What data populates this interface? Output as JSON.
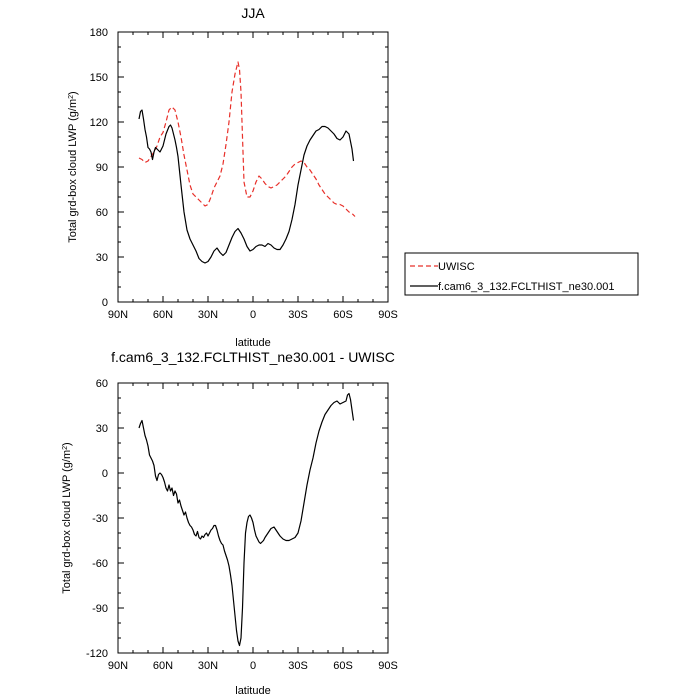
{
  "chart_data": [
    {
      "type": "line",
      "title": "JJA",
      "xlabel": "latitude",
      "ylabel": "Total grd-box cloud LWP (g/m",
      "ylabel_sup": "2",
      "ylabel_end": ")",
      "xlim": [
        90,
        -90
      ],
      "ylim": [
        0,
        180
      ],
      "xticks": [
        90,
        60,
        30,
        0,
        -30,
        -60,
        -90
      ],
      "xtick_labels": [
        "90N",
        "60N",
        "30N",
        "0",
        "30S",
        "60S",
        "90S"
      ],
      "yticks": [
        0,
        30,
        60,
        90,
        120,
        150,
        180
      ],
      "ytick_labels": [
        "0",
        "30",
        "60",
        "90",
        "120",
        "150",
        "180"
      ],
      "legend": "right",
      "series": [
        {
          "name": "UWISC",
          "color": "#e8302a",
          "dash": "dashed",
          "x": [
            76,
            74,
            72,
            70,
            68,
            66,
            64,
            62,
            60,
            58,
            56,
            54,
            52,
            50,
            48,
            46,
            44,
            42,
            40,
            38,
            36,
            34,
            32,
            30,
            28,
            26,
            24,
            22,
            20,
            18,
            16,
            14,
            12,
            10,
            9,
            8,
            7,
            6,
            4,
            2,
            0,
            -2,
            -4,
            -6,
            -8,
            -10,
            -12,
            -14,
            -16,
            -18,
            -20,
            -22,
            -24,
            -26,
            -28,
            -30,
            -32,
            -34,
            -36,
            -38,
            -40,
            -42,
            -44,
            -46,
            -48,
            -50,
            -52,
            -54,
            -56,
            -58,
            -60,
            -62,
            -64,
            -66,
            -68
          ],
          "y": [
            96,
            95,
            93,
            94,
            97,
            100,
            104,
            110,
            113,
            120,
            128,
            130,
            128,
            120,
            110,
            98,
            88,
            78,
            72,
            70,
            68,
            66,
            64,
            65,
            70,
            76,
            80,
            84,
            92,
            105,
            120,
            140,
            152,
            160,
            155,
            140,
            110,
            80,
            70,
            70,
            74,
            80,
            84,
            82,
            79,
            77,
            76,
            77,
            78,
            80,
            82,
            84,
            87,
            90,
            92,
            93,
            94,
            93,
            90,
            88,
            85,
            82,
            78,
            75,
            72,
            70,
            68,
            66,
            65,
            65,
            64,
            62,
            60,
            59,
            57
          ]
        },
        {
          "name": "f.cam6_3_132.FCLTHIST_ne30.001",
          "color": "#000000",
          "dash": "solid",
          "x": [
            76,
            75,
            74,
            73,
            72,
            71,
            70,
            69,
            68,
            67,
            66,
            65,
            64,
            62,
            60,
            58,
            56,
            55,
            54,
            53,
            52,
            51,
            50,
            48,
            46,
            44,
            42,
            40,
            38,
            36,
            34,
            32,
            30,
            28,
            26,
            24,
            22,
            20,
            18,
            16,
            14,
            12,
            10,
            8,
            6,
            4,
            2,
            0,
            -2,
            -4,
            -6,
            -8,
            -10,
            -12,
            -14,
            -16,
            -18,
            -20,
            -22,
            -24,
            -26,
            -28,
            -30,
            -32,
            -34,
            -36,
            -38,
            -40,
            -42,
            -44,
            -46,
            -48,
            -50,
            -52,
            -54,
            -56,
            -58,
            -60,
            -62,
            -64,
            -66,
            -67
          ],
          "y": [
            122,
            127,
            128,
            122,
            115,
            110,
            103,
            102,
            100,
            95,
            100,
            103,
            102,
            100,
            104,
            112,
            117,
            118,
            116,
            112,
            108,
            103,
            97,
            78,
            60,
            48,
            42,
            38,
            34,
            29,
            27,
            26,
            27,
            30,
            34,
            36,
            33,
            31,
            33,
            38,
            43,
            47,
            49,
            46,
            42,
            37,
            34,
            35,
            37,
            38,
            38,
            37,
            39,
            38,
            36,
            35,
            35,
            38,
            42,
            47,
            55,
            65,
            78,
            88,
            98,
            104,
            108,
            111,
            114,
            115,
            117,
            117,
            116,
            114,
            112,
            109,
            108,
            110,
            114,
            112,
            102,
            94
          ]
        }
      ]
    },
    {
      "type": "line",
      "title": "f.cam6_3_132.FCLTHIST_ne30.001 - UWISC",
      "xlabel": "latitude",
      "ylabel": "Total grd-box cloud LWP (g/m",
      "ylabel_sup": "2",
      "ylabel_end": ")",
      "xlim": [
        90,
        -90
      ],
      "ylim": [
        -120,
        60
      ],
      "xticks": [
        90,
        60,
        30,
        0,
        -30,
        -60,
        -90
      ],
      "xtick_labels": [
        "90N",
        "60N",
        "30N",
        "0",
        "30S",
        "60S",
        "90S"
      ],
      "yticks": [
        -120,
        -90,
        -60,
        -30,
        0,
        30,
        60
      ],
      "ytick_labels": [
        "-120",
        "-90",
        "-60",
        "-30",
        "0",
        "30",
        "60"
      ],
      "series": [
        {
          "color": "#000000",
          "dash": "solid",
          "x": [
            76,
            75,
            74,
            73,
            72,
            71,
            70,
            69,
            68,
            67,
            66,
            65,
            64,
            63,
            62,
            61,
            60,
            59,
            58,
            57,
            56,
            55,
            54,
            53,
            52,
            51,
            50,
            49,
            48,
            47,
            46,
            45,
            44,
            43,
            42,
            41,
            40,
            39,
            38,
            37,
            36,
            35,
            34,
            33,
            32,
            31,
            30,
            29,
            28,
            27,
            26,
            25,
            24,
            23,
            22,
            21,
            20,
            19,
            18,
            17,
            16,
            15,
            14,
            13,
            12,
            11,
            10,
            9,
            8,
            7,
            6,
            5,
            4,
            3,
            2,
            1,
            0,
            -1,
            -2,
            -3,
            -4,
            -5,
            -6,
            -7,
            -8,
            -10,
            -12,
            -14,
            -16,
            -18,
            -20,
            -22,
            -24,
            -26,
            -28,
            -30,
            -32,
            -34,
            -36,
            -38,
            -40,
            -42,
            -44,
            -46,
            -48,
            -50,
            -52,
            -54,
            -56,
            -58,
            -60,
            -62,
            -63,
            -64,
            -65,
            -66,
            -67
          ],
          "y": [
            30,
            33,
            35,
            30,
            25,
            22,
            18,
            12,
            10,
            8,
            5,
            -2,
            -5,
            -1,
            0,
            -1,
            -3,
            -6,
            -10,
            -12,
            -8,
            -12,
            -10,
            -15,
            -12,
            -14,
            -20,
            -18,
            -22,
            -25,
            -28,
            -26,
            -30,
            -33,
            -35,
            -36,
            -38,
            -41,
            -42,
            -39,
            -43,
            -44,
            -42,
            -43,
            -41,
            -40,
            -42,
            -40,
            -38,
            -37,
            -35,
            -35,
            -38,
            -42,
            -45,
            -47,
            -48,
            -52,
            -55,
            -58,
            -62,
            -68,
            -75,
            -85,
            -95,
            -105,
            -112,
            -115,
            -110,
            -90,
            -60,
            -40,
            -33,
            -29,
            -28,
            -30,
            -33,
            -38,
            -42,
            -44,
            -46,
            -47,
            -46,
            -45,
            -43,
            -40,
            -37,
            -36,
            -39,
            -42,
            -44,
            -45,
            -45,
            -44,
            -43,
            -40,
            -32,
            -20,
            -8,
            2,
            10,
            20,
            28,
            34,
            39,
            42,
            45,
            47,
            48,
            46,
            47,
            48,
            52,
            53,
            49,
            42,
            35
          ]
        }
      ]
    }
  ]
}
